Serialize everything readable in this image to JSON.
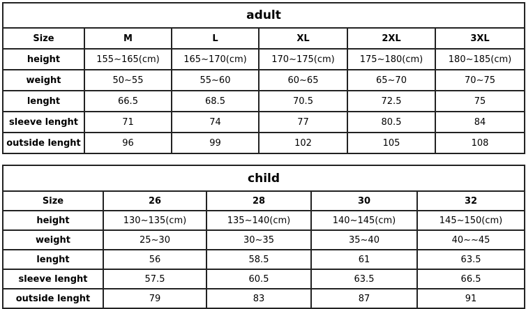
{
  "tables": [
    {
      "title": "adult",
      "rows": [
        [
          "Size",
          "M",
          "L",
          "XL",
          "2XL",
          "3XL"
        ],
        [
          "height",
          "155~165(cm)",
          "165~170(cm)",
          "170~175(cm)",
          "175~180(cm)",
          "180~185(cm)"
        ],
        [
          "weight",
          "50~55",
          "55~60",
          "60~65",
          "65~70",
          "70~75"
        ],
        [
          "lenght",
          "66.5",
          "68.5",
          "70.5",
          "72.5",
          "75"
        ],
        [
          "sleeve lenght",
          "71",
          "74",
          "77",
          "80.5",
          "84"
        ],
        [
          "outside lenght",
          "96",
          "99",
          "102",
          "105",
          "108"
        ]
      ]
    },
    {
      "title": "child",
      "rows": [
        [
          "Size",
          "26",
          "28",
          "30",
          "32"
        ],
        [
          "height",
          "130~135(cm)",
          "135~140(cm)",
          "140~145(cm)",
          "145~150(cm)"
        ],
        [
          "weight",
          "25~30",
          "30~35",
          "35~40",
          "40~~45"
        ],
        [
          "lenght",
          "56",
          "58.5",
          "61",
          "63.5"
        ],
        [
          "sleeve lenght",
          "57.5",
          "60.5",
          "63.5",
          "66.5"
        ],
        [
          "outside lenght",
          "79",
          "83",
          "87",
          "91"
        ]
      ]
    }
  ]
}
